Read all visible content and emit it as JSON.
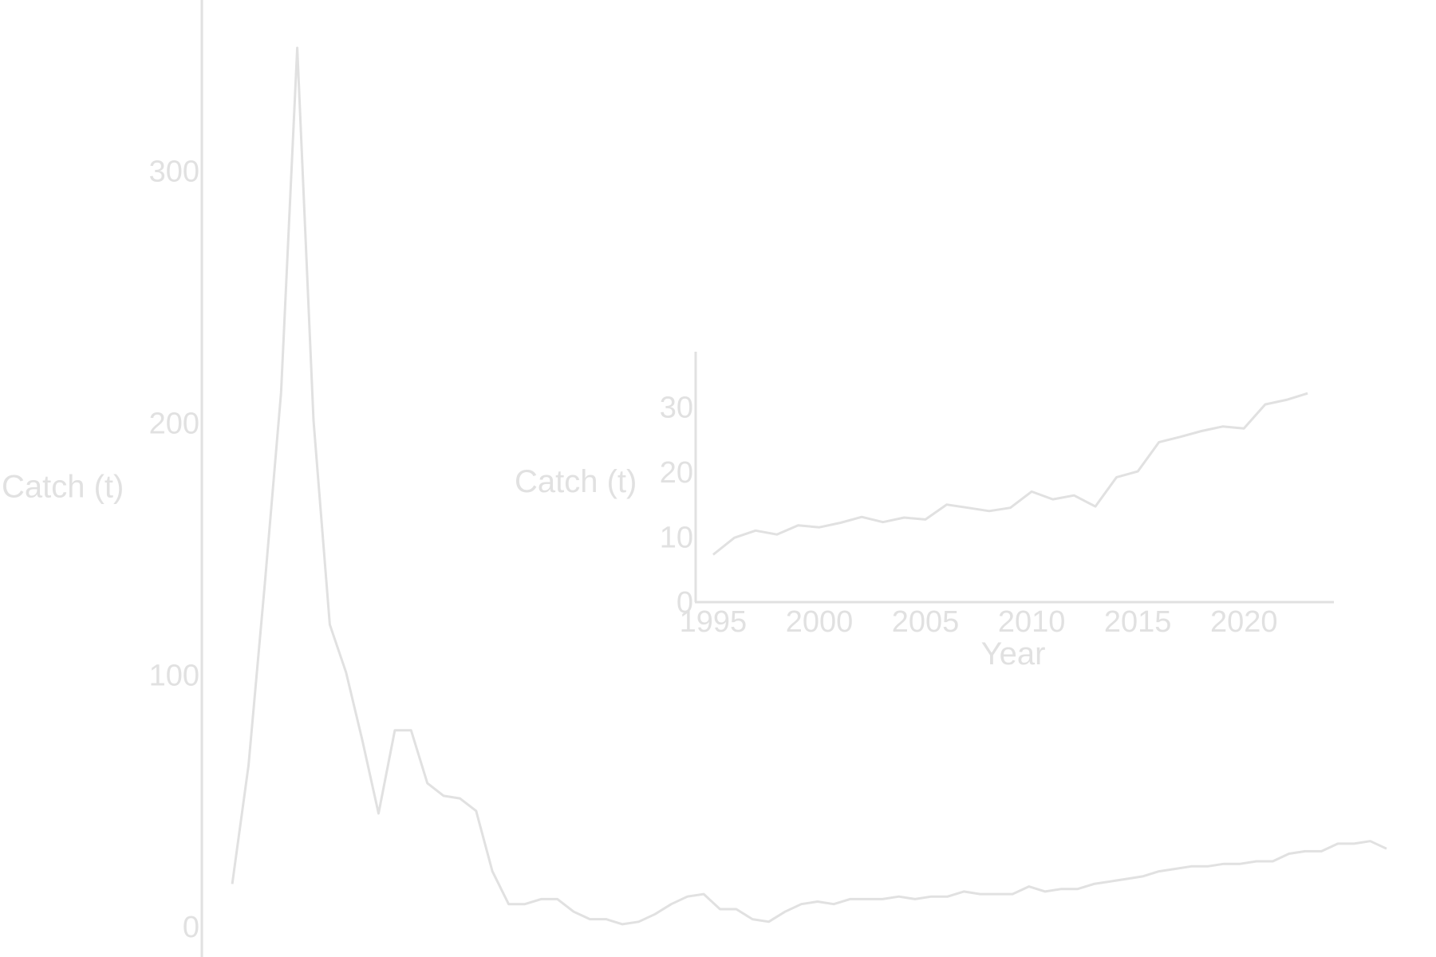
{
  "colors": {
    "background": "#ffffff",
    "line": "#e1e1e1",
    "axis": "#e1e1e1",
    "text": "#e1e1e1"
  },
  "chart_data": [
    {
      "type": "line",
      "title": "",
      "xlabel": "",
      "ylabel": "Catch (t)",
      "yticks": [
        0,
        100,
        200,
        300
      ],
      "xlim": [
        1950,
        2024
      ],
      "ylim": [
        -12,
        368
      ],
      "grid": false,
      "legend": false,
      "x_axis_visible": false,
      "series": [
        {
          "values": [
            [
              1953,
              17
            ],
            [
              1954,
              64
            ],
            [
              1955,
              136
            ],
            [
              1956,
              212
            ],
            [
              1957,
              349
            ],
            [
              1958,
              201
            ],
            [
              1959,
              120
            ],
            [
              1960,
              101
            ],
            [
              1961,
              74
            ],
            [
              1962,
              45
            ],
            [
              1963,
              78
            ],
            [
              1964,
              78
            ],
            [
              1965,
              57
            ],
            [
              1966,
              52
            ],
            [
              1967,
              51
            ],
            [
              1968,
              46
            ],
            [
              1969,
              22
            ],
            [
              1970,
              9
            ],
            [
              1971,
              9
            ],
            [
              1972,
              11
            ],
            [
              1973,
              11
            ],
            [
              1974,
              6
            ],
            [
              1975,
              3
            ],
            [
              1976,
              3
            ],
            [
              1977,
              1
            ],
            [
              1978,
              2
            ],
            [
              1979,
              5
            ],
            [
              1980,
              9
            ],
            [
              1981,
              12
            ],
            [
              1982,
              13
            ],
            [
              1983,
              7
            ],
            [
              1984,
              7
            ],
            [
              1985,
              3
            ],
            [
              1986,
              2
            ],
            [
              1987,
              6
            ],
            [
              1988,
              9
            ],
            [
              1989,
              10
            ],
            [
              1990,
              9
            ],
            [
              1991,
              11
            ],
            [
              1992,
              11
            ],
            [
              1993,
              11
            ],
            [
              1994,
              12
            ],
            [
              1995,
              11
            ],
            [
              1996,
              12
            ],
            [
              1997,
              12
            ],
            [
              1998,
              14
            ],
            [
              1999,
              13
            ],
            [
              2000,
              13
            ],
            [
              2001,
              13
            ],
            [
              2002,
              16
            ],
            [
              2003,
              14
            ],
            [
              2004,
              15
            ],
            [
              2005,
              15
            ],
            [
              2006,
              17
            ],
            [
              2007,
              18
            ],
            [
              2008,
              19
            ],
            [
              2009,
              20
            ],
            [
              2010,
              22
            ],
            [
              2011,
              23
            ],
            [
              2012,
              24
            ],
            [
              2013,
              24
            ],
            [
              2014,
              25
            ],
            [
              2015,
              25
            ],
            [
              2016,
              26
            ],
            [
              2017,
              26
            ],
            [
              2018,
              29
            ],
            [
              2019,
              30
            ],
            [
              2020,
              30
            ],
            [
              2021,
              33
            ],
            [
              2022,
              33
            ],
            [
              2023,
              34
            ],
            [
              2024,
              31
            ]
          ]
        }
      ]
    },
    {
      "type": "line",
      "title": "",
      "xlabel": "Year",
      "ylabel": "Catch (t)",
      "xticks": [
        1995,
        2000,
        2005,
        2010,
        2015,
        2020
      ],
      "yticks": [
        0,
        10,
        20,
        30
      ],
      "xlim": [
        1993.5,
        2024.5
      ],
      "ylim": [
        0,
        38.5
      ],
      "grid": false,
      "legend": false,
      "series": [
        {
          "values": [
            [
              1995,
              7.3
            ],
            [
              1996,
              9.9
            ],
            [
              1997,
              11.0
            ],
            [
              1998,
              10.4
            ],
            [
              1999,
              11.8
            ],
            [
              2000,
              11.5
            ],
            [
              2001,
              12.2
            ],
            [
              2002,
              13.1
            ],
            [
              2003,
              12.3
            ],
            [
              2004,
              13.0
            ],
            [
              2005,
              12.7
            ],
            [
              2006,
              15.0
            ],
            [
              2007,
              14.5
            ],
            [
              2008,
              14.0
            ],
            [
              2009,
              14.5
            ],
            [
              2010,
              17.0
            ],
            [
              2011,
              15.8
            ],
            [
              2012,
              16.4
            ],
            [
              2013,
              14.7
            ],
            [
              2014,
              19.2
            ],
            [
              2015,
              20.1
            ],
            [
              2016,
              24.6
            ],
            [
              2017,
              25.4
            ],
            [
              2018,
              26.3
            ],
            [
              2019,
              27.0
            ],
            [
              2020,
              26.7
            ],
            [
              2021,
              30.4
            ],
            [
              2022,
              31.1
            ],
            [
              2023,
              32.1
            ]
          ]
        }
      ]
    }
  ]
}
